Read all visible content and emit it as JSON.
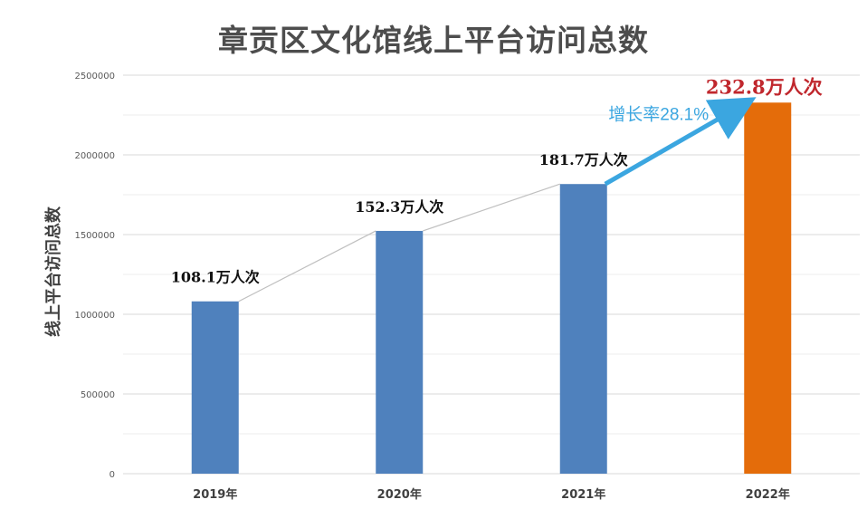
{
  "chart_data": {
    "type": "bar",
    "title": "章贡区文化馆线上平台访问总数",
    "ylabel": "线上平台访问总数",
    "xlabel": "",
    "categories": [
      "2019年",
      "2020年",
      "2021年",
      "2022年"
    ],
    "values": [
      1081000,
      1523000,
      1817000,
      2328000
    ],
    "data_labels": [
      "108.1万人次",
      "152.3万人次",
      "181.7万人次",
      "232.8万人次"
    ],
    "ylim": [
      0,
      2500000
    ],
    "yticks": [
      "0",
      "500000",
      "1000000",
      "1500000",
      "2000000",
      "2500000"
    ],
    "grid": true,
    "bar_colors": [
      "#4f81bd",
      "#4f81bd",
      "#4f81bd",
      "#e46c0a"
    ],
    "annotation": {
      "text": "增长率28.1%",
      "color": "#3ba6e0"
    },
    "highlight_label_color": "#c0272d"
  }
}
